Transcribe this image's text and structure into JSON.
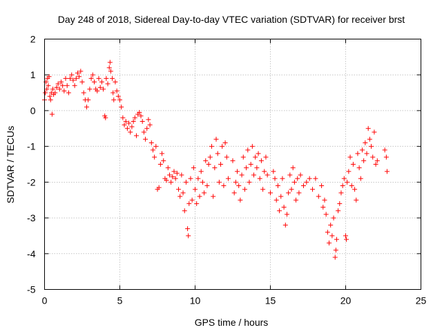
{
  "chart_data": {
    "type": "scatter",
    "title": "Day 248 of 2018, Sidereal Day-to-day VTEC variation (SDTVAR) for receiver brst",
    "xlabel": "GPS time / hours",
    "ylabel": "SDTVAR / TECUs",
    "xlim": [
      0,
      25
    ],
    "ylim": [
      -5,
      2
    ],
    "xticks": [
      "0",
      "5",
      "10",
      "15",
      "20",
      "25"
    ],
    "yticks": [
      "-5",
      "-4",
      "-3",
      "-2",
      "-1",
      "0",
      "1",
      "2"
    ],
    "grid": true,
    "marker": "+",
    "color": "#ff0000",
    "series": [
      {
        "name": "SDTVAR",
        "points": [
          [
            0.0,
            0.3
          ],
          [
            0.05,
            0.5
          ],
          [
            0.1,
            0.8
          ],
          [
            0.15,
            0.6
          ],
          [
            0.2,
            0.9
          ],
          [
            0.25,
            0.7
          ],
          [
            0.3,
            0.95
          ],
          [
            0.35,
            0.4
          ],
          [
            0.4,
            0.3
          ],
          [
            0.45,
            0.5
          ],
          [
            0.5,
            -0.1
          ],
          [
            0.55,
            0.6
          ],
          [
            0.6,
            0.45
          ],
          [
            0.7,
            0.5
          ],
          [
            0.8,
            0.65
          ],
          [
            0.9,
            0.75
          ],
          [
            1.0,
            0.6
          ],
          [
            1.1,
            0.8
          ],
          [
            1.2,
            0.7
          ],
          [
            1.3,
            0.55
          ],
          [
            1.4,
            0.9
          ],
          [
            1.5,
            0.7
          ],
          [
            1.6,
            0.5
          ],
          [
            1.7,
            0.9
          ],
          [
            1.8,
            1.0
          ],
          [
            1.9,
            0.85
          ],
          [
            2.0,
            0.7
          ],
          [
            2.1,
            0.9
          ],
          [
            2.2,
            1.05
          ],
          [
            2.3,
            0.95
          ],
          [
            2.4,
            1.1
          ],
          [
            2.5,
            0.8
          ],
          [
            2.6,
            0.5
          ],
          [
            2.7,
            0.3
          ],
          [
            2.8,
            0.1
          ],
          [
            2.9,
            0.3
          ],
          [
            3.0,
            0.6
          ],
          [
            3.1,
            0.9
          ],
          [
            3.2,
            1.0
          ],
          [
            3.3,
            0.8
          ],
          [
            3.4,
            0.6
          ],
          [
            3.5,
            0.55
          ],
          [
            3.6,
            0.9
          ],
          [
            3.7,
            0.65
          ],
          [
            3.8,
            0.8
          ],
          [
            3.9,
            0.6
          ],
          [
            4.0,
            -0.15
          ],
          [
            4.05,
            -0.2
          ],
          [
            4.1,
            0.9
          ],
          [
            4.2,
            0.75
          ],
          [
            4.3,
            1.2
          ],
          [
            4.35,
            1.35
          ],
          [
            4.4,
            1.1
          ],
          [
            4.5,
            0.9
          ],
          [
            4.55,
            0.5
          ],
          [
            4.6,
            0.3
          ],
          [
            4.7,
            0.8
          ],
          [
            4.8,
            0.55
          ],
          [
            4.9,
            0.4
          ],
          [
            5.0,
            0.3
          ],
          [
            5.1,
            0.1
          ],
          [
            5.2,
            -0.2
          ],
          [
            5.3,
            -0.4
          ],
          [
            5.4,
            -0.3
          ],
          [
            5.5,
            -0.5
          ],
          [
            5.6,
            -0.35
          ],
          [
            5.7,
            -0.6
          ],
          [
            5.8,
            -0.45
          ],
          [
            5.9,
            -0.3
          ],
          [
            6.0,
            -0.2
          ],
          [
            6.1,
            -0.7
          ],
          [
            6.2,
            -0.1
          ],
          [
            6.3,
            -0.05
          ],
          [
            6.4,
            -0.15
          ],
          [
            6.5,
            -0.3
          ],
          [
            6.6,
            -0.6
          ],
          [
            6.7,
            -0.8
          ],
          [
            6.8,
            -0.5
          ],
          [
            6.9,
            -0.25
          ],
          [
            7.0,
            -0.4
          ],
          [
            7.1,
            -0.9
          ],
          [
            7.2,
            -1.1
          ],
          [
            7.3,
            -1.3
          ],
          [
            7.4,
            -1.0
          ],
          [
            7.5,
            -2.2
          ],
          [
            7.6,
            -2.15
          ],
          [
            7.7,
            -1.5
          ],
          [
            7.8,
            -1.2
          ],
          [
            7.9,
            -1.4
          ],
          [
            8.0,
            -1.9
          ],
          [
            8.1,
            -1.95
          ],
          [
            8.2,
            -1.6
          ],
          [
            8.3,
            -1.8
          ],
          [
            8.4,
            -2.0
          ],
          [
            8.5,
            -1.85
          ],
          [
            8.6,
            -1.7
          ],
          [
            8.7,
            -1.9
          ],
          [
            8.8,
            -1.75
          ],
          [
            8.9,
            -2.2
          ],
          [
            9.0,
            -2.4
          ],
          [
            9.1,
            -1.8
          ],
          [
            9.2,
            -2.3
          ],
          [
            9.3,
            -2.8
          ],
          [
            9.4,
            -2.0
          ],
          [
            9.5,
            -3.3
          ],
          [
            9.55,
            -3.5
          ],
          [
            9.6,
            -2.6
          ],
          [
            9.7,
            -1.9
          ],
          [
            9.8,
            -2.5
          ],
          [
            9.9,
            -1.6
          ],
          [
            10.0,
            -2.2
          ],
          [
            10.1,
            -2.6
          ],
          [
            10.2,
            -1.9
          ],
          [
            10.3,
            -2.4
          ],
          [
            10.4,
            -1.7
          ],
          [
            10.5,
            -2.0
          ],
          [
            10.6,
            -2.3
          ],
          [
            10.7,
            -1.4
          ],
          [
            10.8,
            -2.1
          ],
          [
            10.9,
            -1.5
          ],
          [
            11.0,
            -1.3
          ],
          [
            11.1,
            -1.0
          ],
          [
            11.2,
            -2.4
          ],
          [
            11.3,
            -1.6
          ],
          [
            11.4,
            -0.8
          ],
          [
            11.5,
            -1.2
          ],
          [
            11.6,
            -2.0
          ],
          [
            11.7,
            -1.5
          ],
          [
            11.8,
            -1.0
          ],
          [
            11.9,
            -2.1
          ],
          [
            12.0,
            -0.9
          ],
          [
            12.1,
            -1.3
          ],
          [
            12.2,
            -1.9
          ],
          [
            12.5,
            -1.4
          ],
          [
            12.6,
            -2.3
          ],
          [
            12.7,
            -2.0
          ],
          [
            12.8,
            -1.7
          ],
          [
            12.9,
            -2.1
          ],
          [
            13.0,
            -2.5
          ],
          [
            13.1,
            -1.8
          ],
          [
            13.2,
            -1.3
          ],
          [
            13.3,
            -2.2
          ],
          [
            13.4,
            -1.6
          ],
          [
            13.5,
            -1.1
          ],
          [
            13.6,
            -2.0
          ],
          [
            13.7,
            -1.5
          ],
          [
            13.8,
            -1.0
          ],
          [
            13.9,
            -1.8
          ],
          [
            14.0,
            -1.3
          ],
          [
            14.1,
            -1.6
          ],
          [
            14.2,
            -1.2
          ],
          [
            14.3,
            -1.9
          ],
          [
            14.4,
            -1.4
          ],
          [
            14.5,
            -2.2
          ],
          [
            14.6,
            -1.7
          ],
          [
            14.7,
            -1.3
          ],
          [
            14.8,
            -1.8
          ],
          [
            15.0,
            -2.3
          ],
          [
            15.2,
            -1.7
          ],
          [
            15.3,
            -1.9
          ],
          [
            15.4,
            -2.5
          ],
          [
            15.5,
            -2.1
          ],
          [
            15.6,
            -2.8
          ],
          [
            15.7,
            -2.4
          ],
          [
            15.8,
            -1.9
          ],
          [
            15.9,
            -2.7
          ],
          [
            16.0,
            -3.2
          ],
          [
            16.1,
            -2.9
          ],
          [
            16.2,
            -2.3
          ],
          [
            16.3,
            -1.8
          ],
          [
            16.4,
            -2.2
          ],
          [
            16.5,
            -1.6
          ],
          [
            16.6,
            -2.0
          ],
          [
            16.7,
            -2.5
          ],
          [
            16.8,
            -1.9
          ],
          [
            16.9,
            -2.3
          ],
          [
            17.0,
            -1.8
          ],
          [
            17.2,
            -2.1
          ],
          [
            17.4,
            -2.0
          ],
          [
            17.6,
            -1.9
          ],
          [
            17.8,
            -2.2
          ],
          [
            18.0,
            -1.9
          ],
          [
            18.2,
            -2.4
          ],
          [
            18.4,
            -2.1
          ],
          [
            18.5,
            -2.7
          ],
          [
            18.6,
            -2.5
          ],
          [
            18.7,
            -2.9
          ],
          [
            18.8,
            -3.4
          ],
          [
            18.9,
            -3.7
          ],
          [
            19.0,
            -3.2
          ],
          [
            19.1,
            -3.5
          ],
          [
            19.2,
            -3.0
          ],
          [
            19.3,
            -4.1
          ],
          [
            19.35,
            -3.9
          ],
          [
            19.4,
            -3.6
          ],
          [
            19.5,
            -2.8
          ],
          [
            19.6,
            -2.6
          ],
          [
            19.7,
            -2.3
          ],
          [
            19.8,
            -2.1
          ],
          [
            19.9,
            -1.9
          ],
          [
            20.0,
            -3.5
          ],
          [
            20.05,
            -3.6
          ],
          [
            20.1,
            -2.0
          ],
          [
            20.2,
            -1.7
          ],
          [
            20.3,
            -1.3
          ],
          [
            20.4,
            -2.1
          ],
          [
            20.5,
            -1.5
          ],
          [
            20.6,
            -2.2
          ],
          [
            20.7,
            -2.5
          ],
          [
            20.8,
            -1.2
          ],
          [
            20.9,
            -1.6
          ],
          [
            21.0,
            -1.9
          ],
          [
            21.1,
            -1.1
          ],
          [
            21.2,
            -1.4
          ],
          [
            21.3,
            -0.9
          ],
          [
            21.4,
            -1.2
          ],
          [
            21.5,
            -0.5
          ],
          [
            21.6,
            -0.8
          ],
          [
            21.7,
            -1.0
          ],
          [
            21.8,
            -1.3
          ],
          [
            21.9,
            -0.6
          ],
          [
            22.0,
            -1.5
          ],
          [
            22.1,
            -1.4
          ],
          [
            22.6,
            -1.1
          ],
          [
            22.7,
            -1.3
          ],
          [
            22.75,
            -1.7
          ]
        ]
      }
    ]
  }
}
